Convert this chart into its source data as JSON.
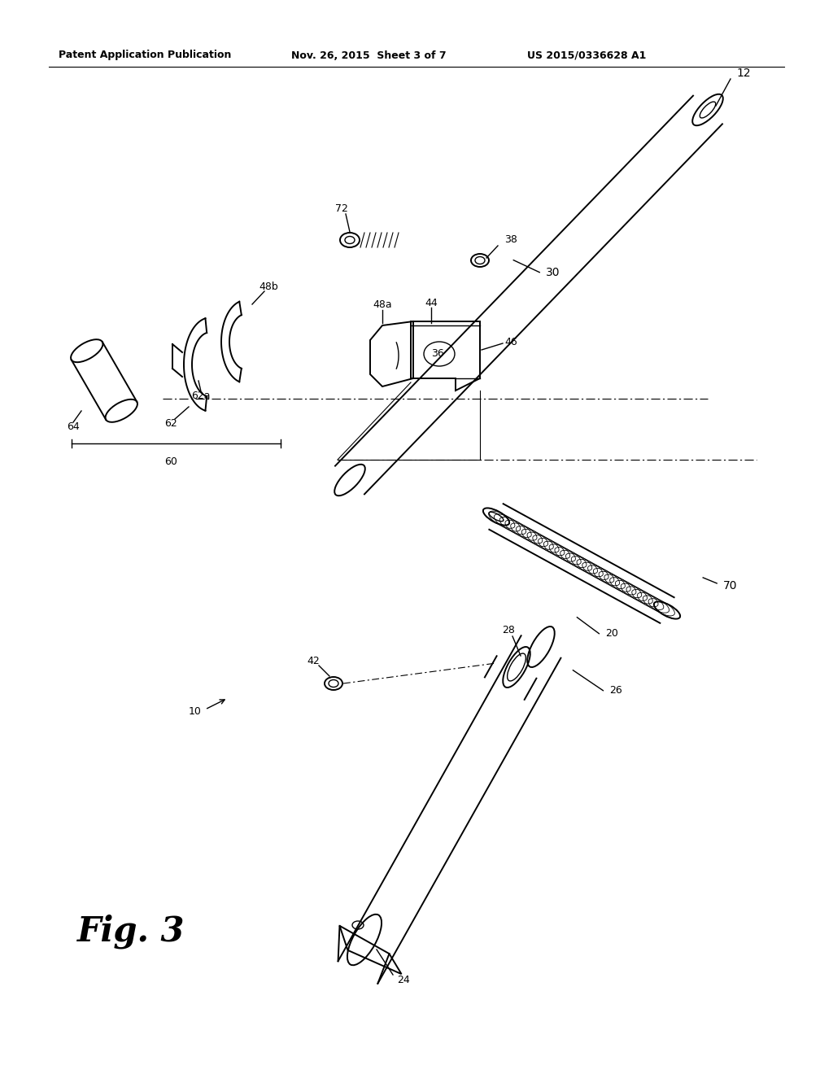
{
  "background_color": "#ffffff",
  "header_left": "Patent Application Publication",
  "header_center": "Nov. 26, 2015  Sheet 3 of 7",
  "header_right": "US 2015/0336628 A1",
  "figure_label": "Fig. 3"
}
